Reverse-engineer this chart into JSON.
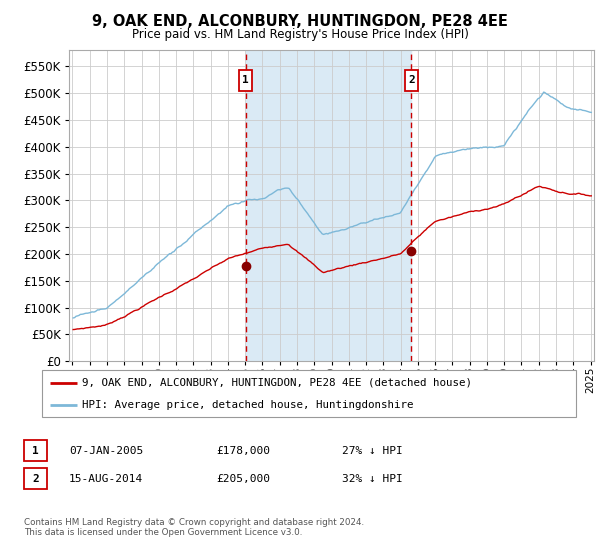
{
  "title": "9, OAK END, ALCONBURY, HUNTINGDON, PE28 4EE",
  "subtitle": "Price paid vs. HM Land Registry's House Price Index (HPI)",
  "ylim": [
    0,
    580000
  ],
  "yticks": [
    0,
    50000,
    100000,
    150000,
    200000,
    250000,
    300000,
    350000,
    400000,
    450000,
    500000,
    550000
  ],
  "ytick_labels": [
    "£0",
    "£50K",
    "£100K",
    "£150K",
    "£200K",
    "£250K",
    "£300K",
    "£350K",
    "£400K",
    "£450K",
    "£500K",
    "£550K"
  ],
  "xmin_year": 1995,
  "xmax_year": 2025,
  "xtick_years": [
    1995,
    1996,
    1997,
    1998,
    1999,
    2000,
    2001,
    2002,
    2003,
    2004,
    2005,
    2006,
    2007,
    2008,
    2009,
    2010,
    2011,
    2012,
    2013,
    2014,
    2015,
    2016,
    2017,
    2018,
    2019,
    2020,
    2021,
    2022,
    2023,
    2024,
    2025
  ],
  "hpi_color": "#7db8d8",
  "price_color": "#cc0000",
  "marker_color": "#880000",
  "shade_color": "#daeaf5",
  "vline_color": "#cc0000",
  "grid_color": "#cccccc",
  "bg_color": "#ffffff",
  "sale1_year": 2005.03,
  "sale1_price": 178000,
  "sale2_year": 2014.62,
  "sale2_price": 205000,
  "legend_label_red": "9, OAK END, ALCONBURY, HUNTINGDON, PE28 4EE (detached house)",
  "legend_label_blue": "HPI: Average price, detached house, Huntingdonshire",
  "note1_date": "07-JAN-2005",
  "note1_price": "£178,000",
  "note1_pct": "27% ↓ HPI",
  "note2_date": "15-AUG-2014",
  "note2_price": "£205,000",
  "note2_pct": "32% ↓ HPI",
  "footer": "Contains HM Land Registry data © Crown copyright and database right 2024.\nThis data is licensed under the Open Government Licence v3.0."
}
